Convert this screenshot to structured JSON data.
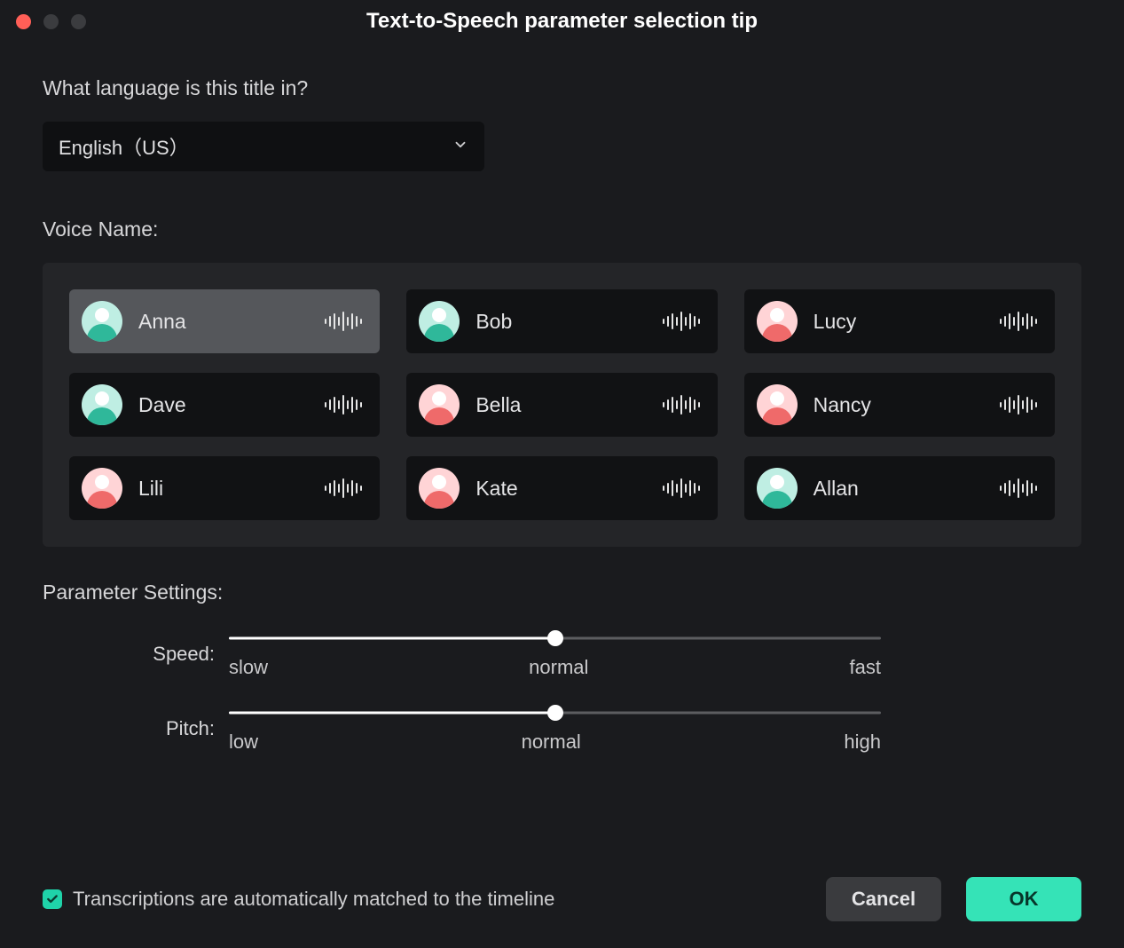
{
  "window": {
    "title": "Text-to-Speech parameter selection tip"
  },
  "language": {
    "question": "What language is this title in?",
    "selected": "English（US）"
  },
  "voice": {
    "label": "Voice Name:",
    "selected_index": 0,
    "items": [
      {
        "name": "Anna",
        "avatar": "teal"
      },
      {
        "name": "Bob",
        "avatar": "teal"
      },
      {
        "name": "Lucy",
        "avatar": "pink"
      },
      {
        "name": "Dave",
        "avatar": "teal"
      },
      {
        "name": "Bella",
        "avatar": "pink"
      },
      {
        "name": "Nancy",
        "avatar": "pink"
      },
      {
        "name": "Lili",
        "avatar": "pink"
      },
      {
        "name": "Kate",
        "avatar": "pink"
      },
      {
        "name": "Allan",
        "avatar": "teal"
      }
    ],
    "waveform_bar_heights": [
      6,
      12,
      18,
      10,
      22,
      10,
      18,
      12,
      6
    ]
  },
  "params": {
    "section_label": "Parameter Settings:",
    "speed": {
      "label": "Speed:",
      "value_pct": 50,
      "ticks": [
        "slow",
        "normal",
        "fast"
      ]
    },
    "pitch": {
      "label": "Pitch:",
      "value_pct": 50,
      "ticks": [
        "low",
        "normal",
        "high"
      ]
    }
  },
  "footer": {
    "checkbox_label": "Transcriptions are automatically matched to the timeline",
    "checkbox_checked": true,
    "cancel": "Cancel",
    "ok": "OK"
  },
  "colors": {
    "accent": "#35e3b7",
    "bg": "#1a1b1e",
    "panel": "#242528",
    "card": "#111214",
    "card_selected": "#55575b",
    "avatar_teal_bg": "#bfeee3",
    "avatar_teal_body": "#2fb89a",
    "avatar_pink_bg": "#ffd4d6",
    "avatar_pink_body": "#ef6a6a"
  }
}
